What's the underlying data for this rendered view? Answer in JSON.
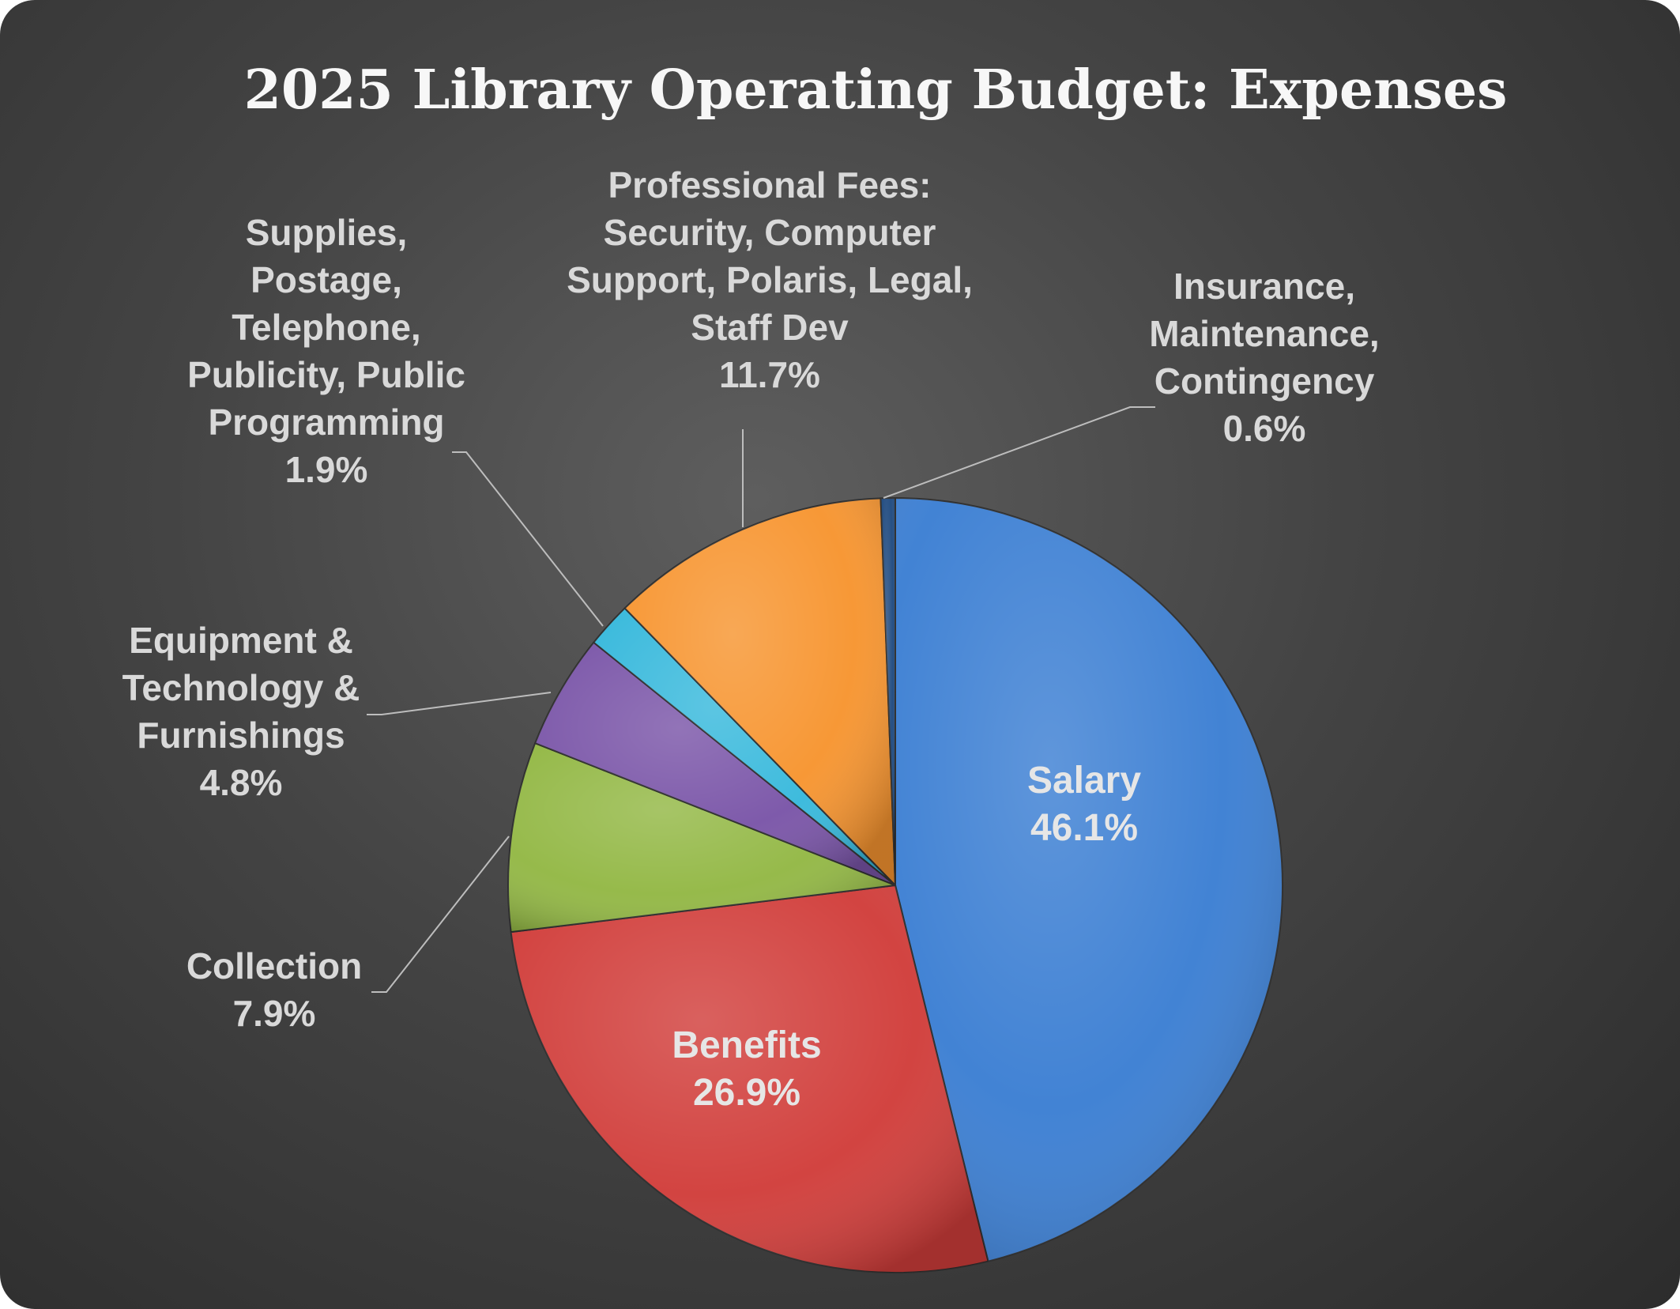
{
  "chart_data": {
    "type": "pie",
    "title": "2025 Library Operating Budget: Expenses",
    "slices": [
      {
        "label": [
          "Salary"
        ],
        "value": 46.1,
        "value_label": "46.1%",
        "color": "#3c7fd3"
      },
      {
        "label": [
          "Benefits"
        ],
        "value": 26.9,
        "value_label": "26.9%",
        "color": "#d13e3b"
      },
      {
        "label": [
          "Collection"
        ],
        "value": 7.9,
        "value_label": "7.9%",
        "color": "#93b845"
      },
      {
        "label": [
          "Equipment &",
          "Technology &",
          "Furnishings"
        ],
        "value": 4.8,
        "value_label": "4.8%",
        "color": "#7a55a8"
      },
      {
        "label": [
          "Supplies,",
          "Postage,",
          "Telephone,",
          "Publicity, Public",
          "Programming"
        ],
        "value": 1.9,
        "value_label": "1.9%",
        "color": "#38b9dc"
      },
      {
        "label": [
          "Professional Fees:",
          "Security, Computer",
          "Support, Polaris, Legal,",
          "Staff Dev"
        ],
        "value": 11.7,
        "value_label": "11.7%",
        "color": "#f79530"
      },
      {
        "label": [
          "Insurance,",
          "Maintenance,",
          "Contingency"
        ],
        "value": 0.6,
        "value_label": "0.6%",
        "color": "#1f4a80"
      }
    ]
  }
}
